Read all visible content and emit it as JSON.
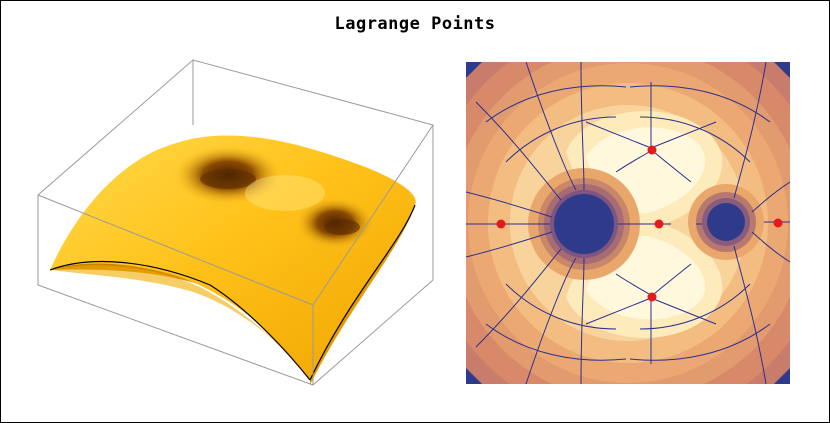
{
  "title": "Lagrange Points",
  "colors": {
    "surface_light": "#ffd23a",
    "surface_mid": "#f5a800",
    "surface_dark": "#7a3b00",
    "contour_outer": "#c0706a",
    "contour_mid": "#e9a26c",
    "contour_inner": "#f7d49a",
    "contour_center": "#fff7d6",
    "well_blue": "#2e3b8a",
    "stream_line": "#2b2f8f",
    "lagrange_point": "#e41a1c"
  },
  "panels": {
    "surface_plot": "3d-surface",
    "field_plot": "stream-density"
  }
}
